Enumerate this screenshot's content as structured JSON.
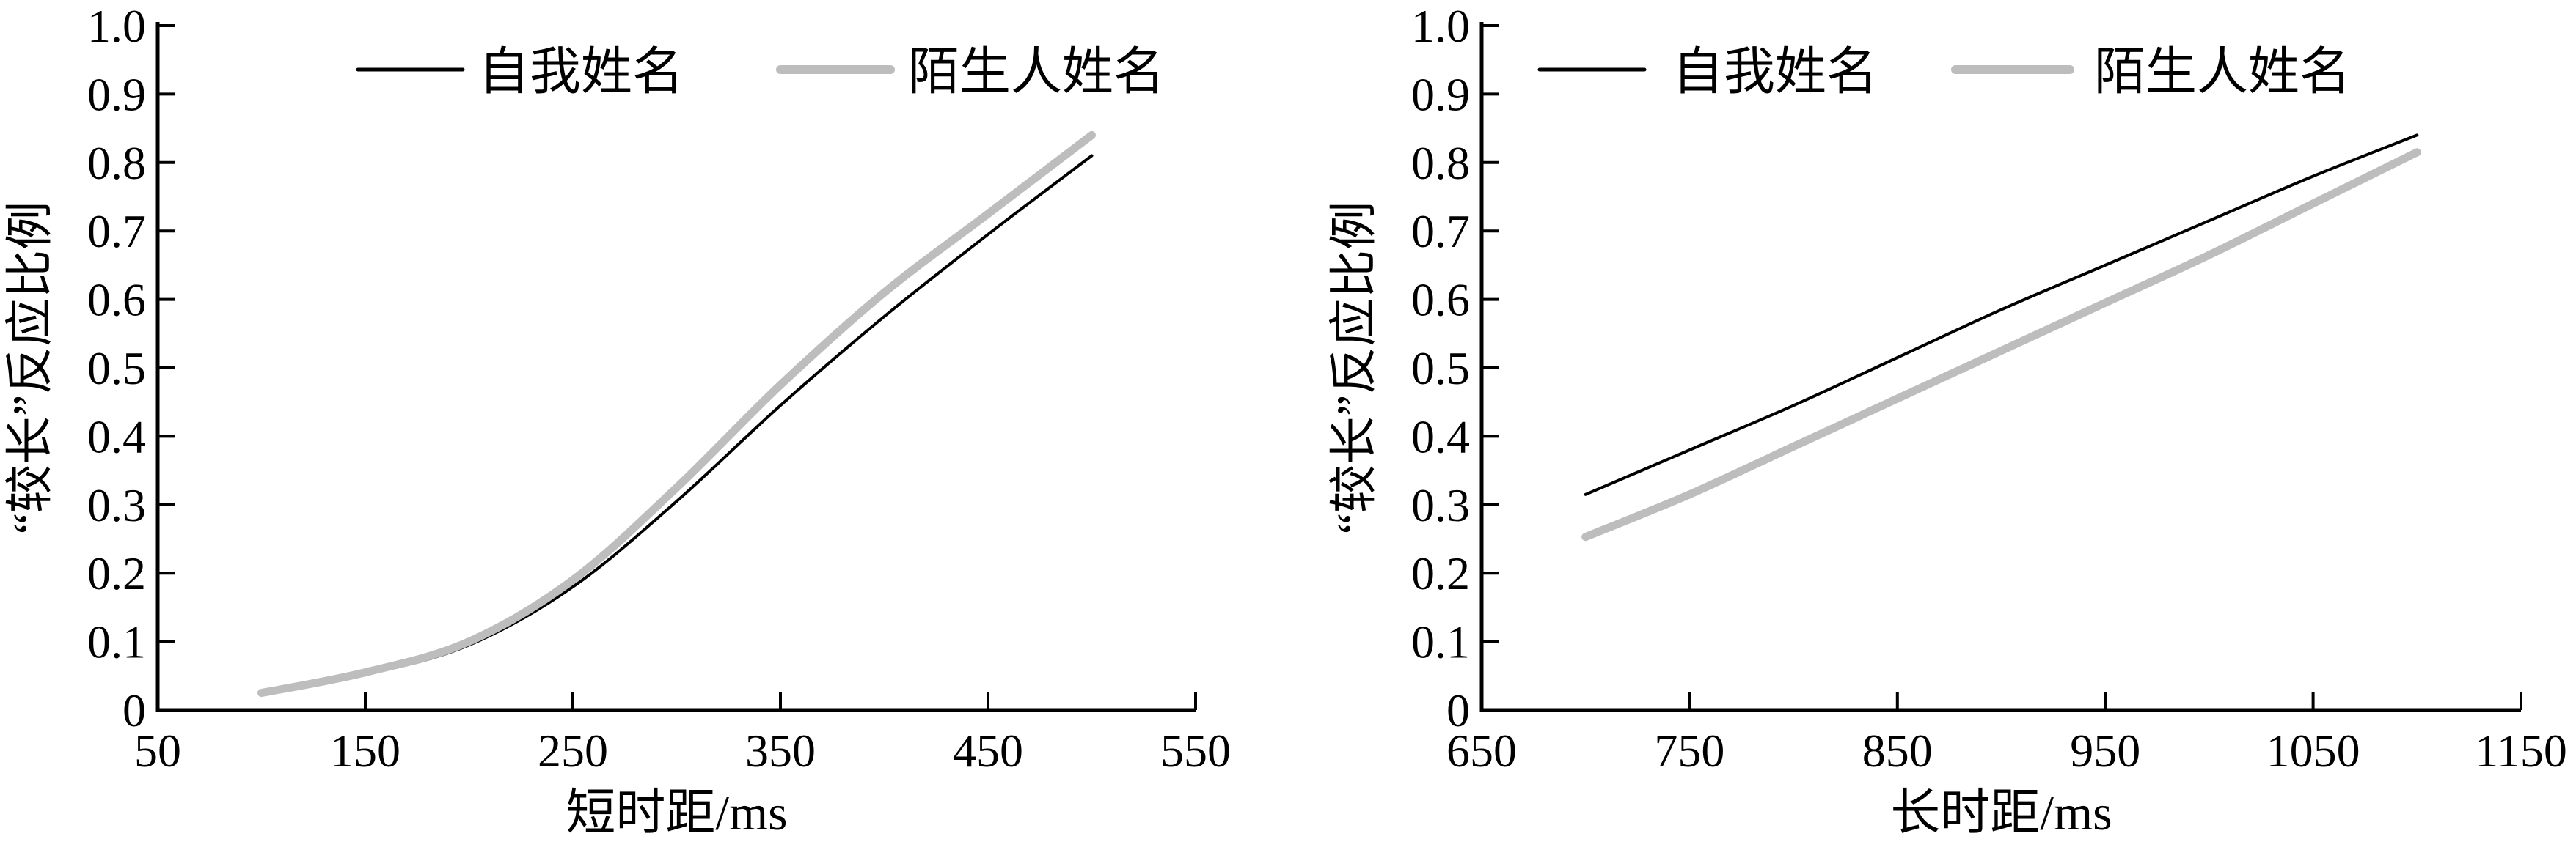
{
  "figure": {
    "background": "#ffffff",
    "text_color": "#000000"
  },
  "chart_data": [
    {
      "type": "line",
      "title": "",
      "xlabel": "短时距/ms",
      "ylabel": "“较长”反应比例",
      "x_range": [
        50,
        550
      ],
      "x_ticks": [
        50,
        150,
        250,
        350,
        450,
        550
      ],
      "x_tick_labels": [
        "50",
        "150",
        "250",
        "350",
        "450",
        "550"
      ],
      "ylim": [
        0,
        1.0
      ],
      "y_ticks": [
        0,
        0.1,
        0.2,
        0.3,
        0.4,
        0.5,
        0.6,
        0.7,
        0.8,
        0.9,
        1.0
      ],
      "y_tick_labels": [
        "0",
        "0.1",
        "0.2",
        "0.3",
        "0.4",
        "0.5",
        "0.6",
        "0.7",
        "0.8",
        "0.9",
        "1.0"
      ],
      "grid": false,
      "legend_position": "top",
      "x": [
        100,
        150,
        200,
        250,
        300,
        350,
        400,
        450,
        500
      ],
      "series": [
        {
          "name": "自我姓名",
          "color": "#000000",
          "line_width": 4,
          "values": [
            0.025,
            0.052,
            0.095,
            0.18,
            0.305,
            0.445,
            0.575,
            0.695,
            0.81
          ]
        },
        {
          "name": "陌生人姓名",
          "color": "#bdbdbd",
          "line_width": 11,
          "values": [
            0.025,
            0.055,
            0.1,
            0.19,
            0.325,
            0.475,
            0.61,
            0.725,
            0.84
          ]
        }
      ]
    },
    {
      "type": "line",
      "title": "",
      "xlabel": "长时距/ms",
      "ylabel": "“较长”反应比例",
      "x_range": [
        650,
        1150
      ],
      "x_ticks": [
        650,
        750,
        850,
        950,
        1050,
        1150
      ],
      "x_tick_labels": [
        "650",
        "750",
        "850",
        "950",
        "1050",
        "1150"
      ],
      "ylim": [
        0,
        1.0
      ],
      "y_ticks": [
        0,
        0.1,
        0.2,
        0.3,
        0.4,
        0.5,
        0.6,
        0.7,
        0.8,
        0.9,
        1.0
      ],
      "y_tick_labels": [
        "0",
        "0.1",
        "0.2",
        "0.3",
        "0.4",
        "0.5",
        "0.6",
        "0.7",
        "0.8",
        "0.9",
        "1.0"
      ],
      "grid": false,
      "legend_position": "top",
      "x": [
        700,
        750,
        800,
        850,
        900,
        950,
        1000,
        1050,
        1100
      ],
      "series": [
        {
          "name": "自我姓名",
          "color": "#000000",
          "line_width": 4,
          "values": [
            0.315,
            0.38,
            0.445,
            0.515,
            0.585,
            0.65,
            0.715,
            0.78,
            0.84
          ]
        },
        {
          "name": "陌生人姓名",
          "color": "#bdbdbd",
          "line_width": 11,
          "values": [
            0.253,
            0.315,
            0.385,
            0.455,
            0.525,
            0.595,
            0.665,
            0.74,
            0.815
          ]
        }
      ]
    }
  ]
}
